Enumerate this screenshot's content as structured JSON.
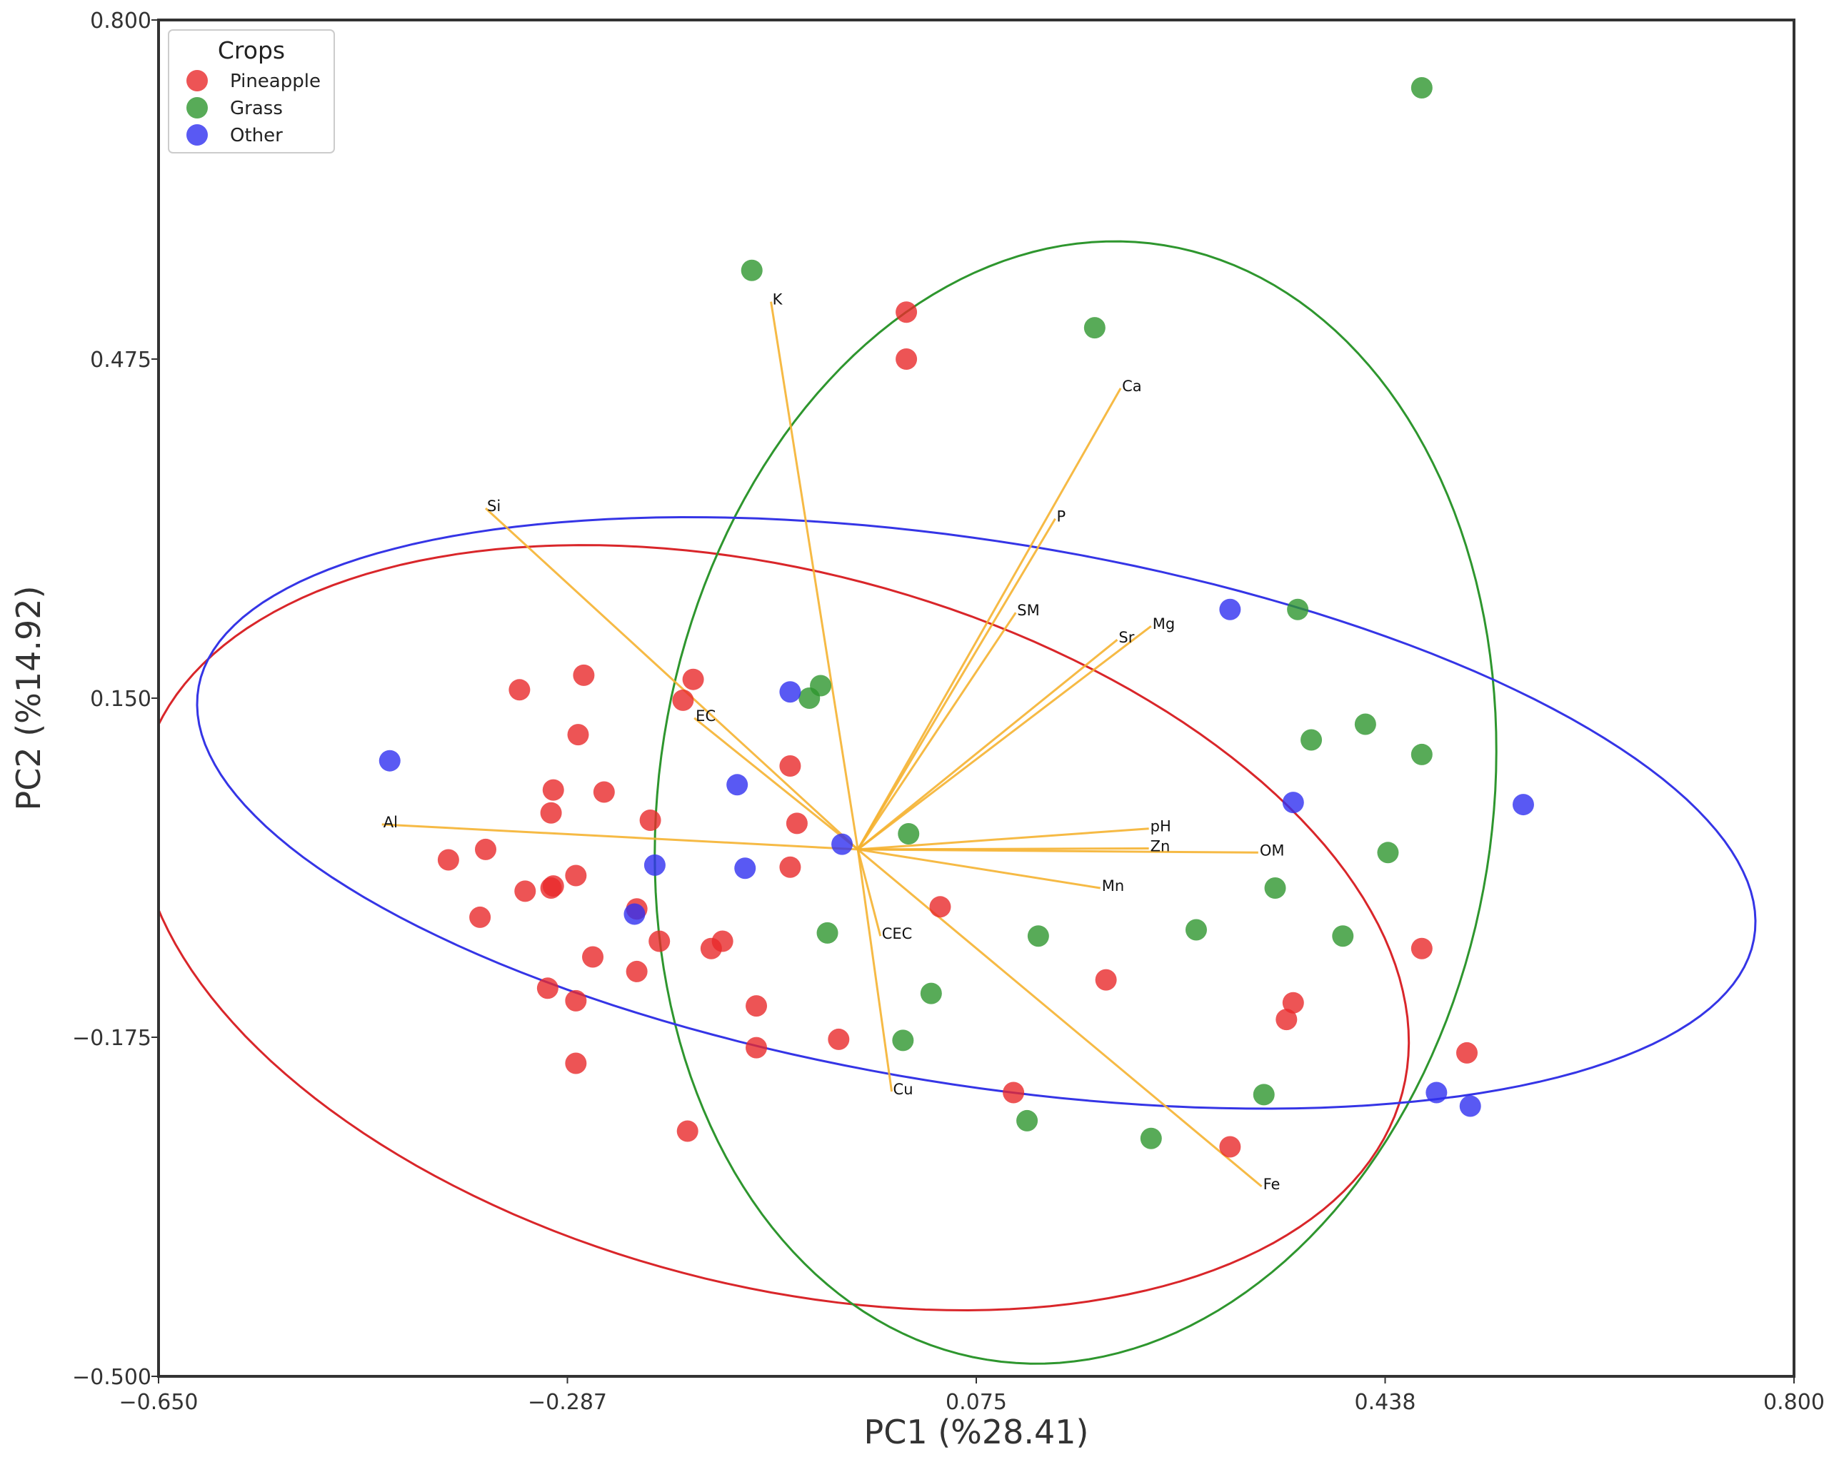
{
  "chart_data": {
    "type": "scatter",
    "title": "",
    "xlabel": "PC1 (%28.41)",
    "ylabel": "PC2 (%14.92)",
    "xlim": [
      -0.65,
      0.8
    ],
    "ylim": [
      -0.5,
      0.8
    ],
    "xticks": [
      "−0.650",
      "−0.287",
      "0.075",
      "0.438",
      "0.800"
    ],
    "xtick_values": [
      -0.65,
      -0.2875,
      0.075,
      0.4375,
      0.8
    ],
    "yticks": [
      "0.800",
      "0.475",
      "0.150",
      "−0.175",
      "−0.500"
    ],
    "ytick_values": [
      0.8,
      0.475,
      0.15,
      -0.175,
      -0.5
    ],
    "grid": false,
    "legend": {
      "title": "Crops",
      "location": "top-left",
      "entries": [
        "Pineapple",
        "Grass",
        "Other"
      ]
    },
    "series": [
      {
        "name": "Pineapple",
        "color": "#e8292b",
        "points": [
          [
            -0.33,
            0.158
          ],
          [
            -0.273,
            0.172
          ],
          [
            -0.176,
            0.168
          ],
          [
            -0.185,
            0.148
          ],
          [
            -0.278,
            0.115
          ],
          [
            -0.3,
            0.062
          ],
          [
            -0.255,
            0.06
          ],
          [
            -0.302,
            0.04
          ],
          [
            -0.214,
            0.033
          ],
          [
            -0.36,
            0.005
          ],
          [
            -0.393,
            -0.005
          ],
          [
            -0.3,
            -0.03
          ],
          [
            -0.28,
            -0.02
          ],
          [
            -0.325,
            -0.035
          ],
          [
            -0.302,
            -0.032
          ],
          [
            -0.365,
            -0.06
          ],
          [
            -0.226,
            -0.052
          ],
          [
            -0.206,
            -0.083
          ],
          [
            -0.265,
            -0.098
          ],
          [
            -0.16,
            -0.09
          ],
          [
            -0.15,
            -0.083
          ],
          [
            -0.226,
            -0.112
          ],
          [
            -0.305,
            -0.128
          ],
          [
            -0.28,
            -0.14
          ],
          [
            -0.12,
            -0.145
          ],
          [
            -0.28,
            -0.2
          ],
          [
            -0.12,
            -0.185
          ],
          [
            -0.181,
            -0.265
          ],
          [
            -0.09,
            0.085
          ],
          [
            -0.084,
            0.03
          ],
          [
            -0.09,
            -0.012
          ],
          [
            -0.047,
            -0.177
          ],
          [
            0.043,
            -0.05
          ],
          [
            0.013,
            0.52
          ],
          [
            0.013,
            0.475
          ],
          [
            0.108,
            -0.228
          ],
          [
            0.19,
            -0.12
          ],
          [
            0.3,
            -0.28
          ],
          [
            0.356,
            -0.142
          ],
          [
            0.35,
            -0.158
          ],
          [
            0.47,
            -0.09
          ],
          [
            0.51,
            -0.19
          ]
        ]
      },
      {
        "name": "Grass",
        "color": "#2e962e",
        "points": [
          [
            0.47,
            0.735
          ],
          [
            -0.124,
            0.56
          ],
          [
            0.18,
            0.505
          ],
          [
            0.36,
            0.235
          ],
          [
            -0.063,
            0.162
          ],
          [
            -0.073,
            0.15
          ],
          [
            0.372,
            0.11
          ],
          [
            0.42,
            0.125
          ],
          [
            0.47,
            0.096
          ],
          [
            0.015,
            0.02
          ],
          [
            0.44,
            0.002
          ],
          [
            0.34,
            -0.032
          ],
          [
            -0.057,
            -0.075
          ],
          [
            0.13,
            -0.078
          ],
          [
            0.27,
            -0.072
          ],
          [
            0.4,
            -0.078
          ],
          [
            0.035,
            -0.133
          ],
          [
            0.01,
            -0.178
          ],
          [
            0.12,
            -0.255
          ],
          [
            0.33,
            -0.23
          ],
          [
            0.23,
            -0.272
          ]
        ]
      },
      {
        "name": "Other",
        "color": "#3030f0",
        "points": [
          [
            -0.445,
            0.09
          ],
          [
            0.3,
            0.235
          ],
          [
            -0.09,
            0.156
          ],
          [
            -0.137,
            0.067
          ],
          [
            0.356,
            0.05
          ],
          [
            0.56,
            0.048
          ],
          [
            -0.044,
            0.01
          ],
          [
            -0.21,
            -0.01
          ],
          [
            -0.13,
            -0.013
          ],
          [
            -0.228,
            -0.057
          ],
          [
            0.513,
            -0.241
          ],
          [
            0.483,
            -0.228
          ]
        ]
      }
    ],
    "vector_origin": [
      -0.03,
      0.005
    ],
    "loadings": [
      {
        "name": "K",
        "end": [
          -0.107,
          0.53
        ]
      },
      {
        "name": "Si",
        "end": [
          -0.36,
          0.332
        ]
      },
      {
        "name": "Ca",
        "end": [
          0.203,
          0.447
        ]
      },
      {
        "name": "P",
        "end": [
          0.145,
          0.322
        ]
      },
      {
        "name": "SM",
        "end": [
          0.11,
          0.232
        ]
      },
      {
        "name": "Mg",
        "end": [
          0.23,
          0.219
        ]
      },
      {
        "name": "Sr",
        "end": [
          0.2,
          0.206
        ]
      },
      {
        "name": "EC",
        "end": [
          -0.175,
          0.131
        ]
      },
      {
        "name": "Al",
        "end": [
          -0.452,
          0.029
        ]
      },
      {
        "name": "pH",
        "end": [
          0.228,
          0.025
        ]
      },
      {
        "name": "Zn",
        "end": [
          0.228,
          0.006
        ]
      },
      {
        "name": "OM",
        "end": [
          0.325,
          0.002
        ]
      },
      {
        "name": "Mn",
        "end": [
          0.185,
          -0.032
        ]
      },
      {
        "name": "CEC",
        "end": [
          -0.01,
          -0.078
        ]
      },
      {
        "name": "Cu",
        "end": [
          -0.0,
          -0.227
        ]
      },
      {
        "name": "Fe",
        "end": [
          0.328,
          -0.318
        ]
      }
    ],
    "ellipses": [
      {
        "name": "Pineapple",
        "color": "#d9262a",
        "center": [
          -0.105,
          -0.07
        ],
        "radii": [
          0.58,
          0.34
        ],
        "angle_deg": -17
      },
      {
        "name": "Grass",
        "color": "#2e962e",
        "center": [
          0.163,
          0.05
        ],
        "radii": [
          0.37,
          0.54
        ],
        "angle_deg": -7
      },
      {
        "name": "Other",
        "color": "#3535e6",
        "center": [
          0.075,
          0.04
        ],
        "radii": [
          0.7,
          0.26
        ],
        "angle_deg": -10
      }
    ],
    "vector_color": "#f5b331"
  }
}
